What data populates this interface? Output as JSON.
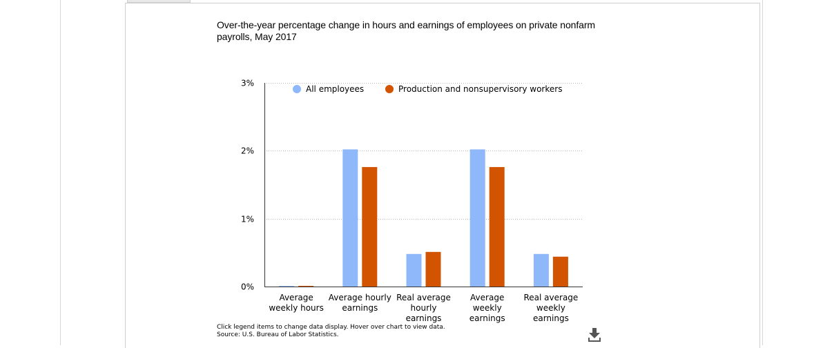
{
  "chart_data": {
    "type": "bar",
    "title": "Over-the-year percentage change in hours and earnings of employees on private nonfarm payrolls, May 2017",
    "categories": [
      [
        "Average",
        "weekly hours"
      ],
      [
        "Average hourly",
        "earnings"
      ],
      [
        "Real average",
        "hourly",
        "earnings"
      ],
      [
        "Average",
        "weekly",
        "earnings"
      ],
      [
        "Real average",
        "weekly",
        "earnings"
      ]
    ],
    "series": [
      {
        "name": "All employees",
        "color": "#8fb8fa",
        "values": [
          0.01,
          2.02,
          0.48,
          2.02,
          0.48
        ]
      },
      {
        "name": "Production and nonsupervisory workers",
        "color": "#d35400",
        "values": [
          0.01,
          1.76,
          0.51,
          1.76,
          0.44
        ]
      }
    ],
    "ylim": [
      0,
      3
    ],
    "yticks": [
      {
        "value": 0,
        "label": "0%"
      },
      {
        "value": 1,
        "label": "1%"
      },
      {
        "value": 2,
        "label": "2%"
      },
      {
        "value": 3,
        "label": "3%"
      }
    ],
    "grid": true,
    "legend": "top-inside"
  },
  "notes": {
    "line1": "Click legend items to change data display. Hover over chart to view data.",
    "line2": "Source: U.S. Bureau of Labor Statistics."
  },
  "icons": {
    "download": "download-icon"
  }
}
